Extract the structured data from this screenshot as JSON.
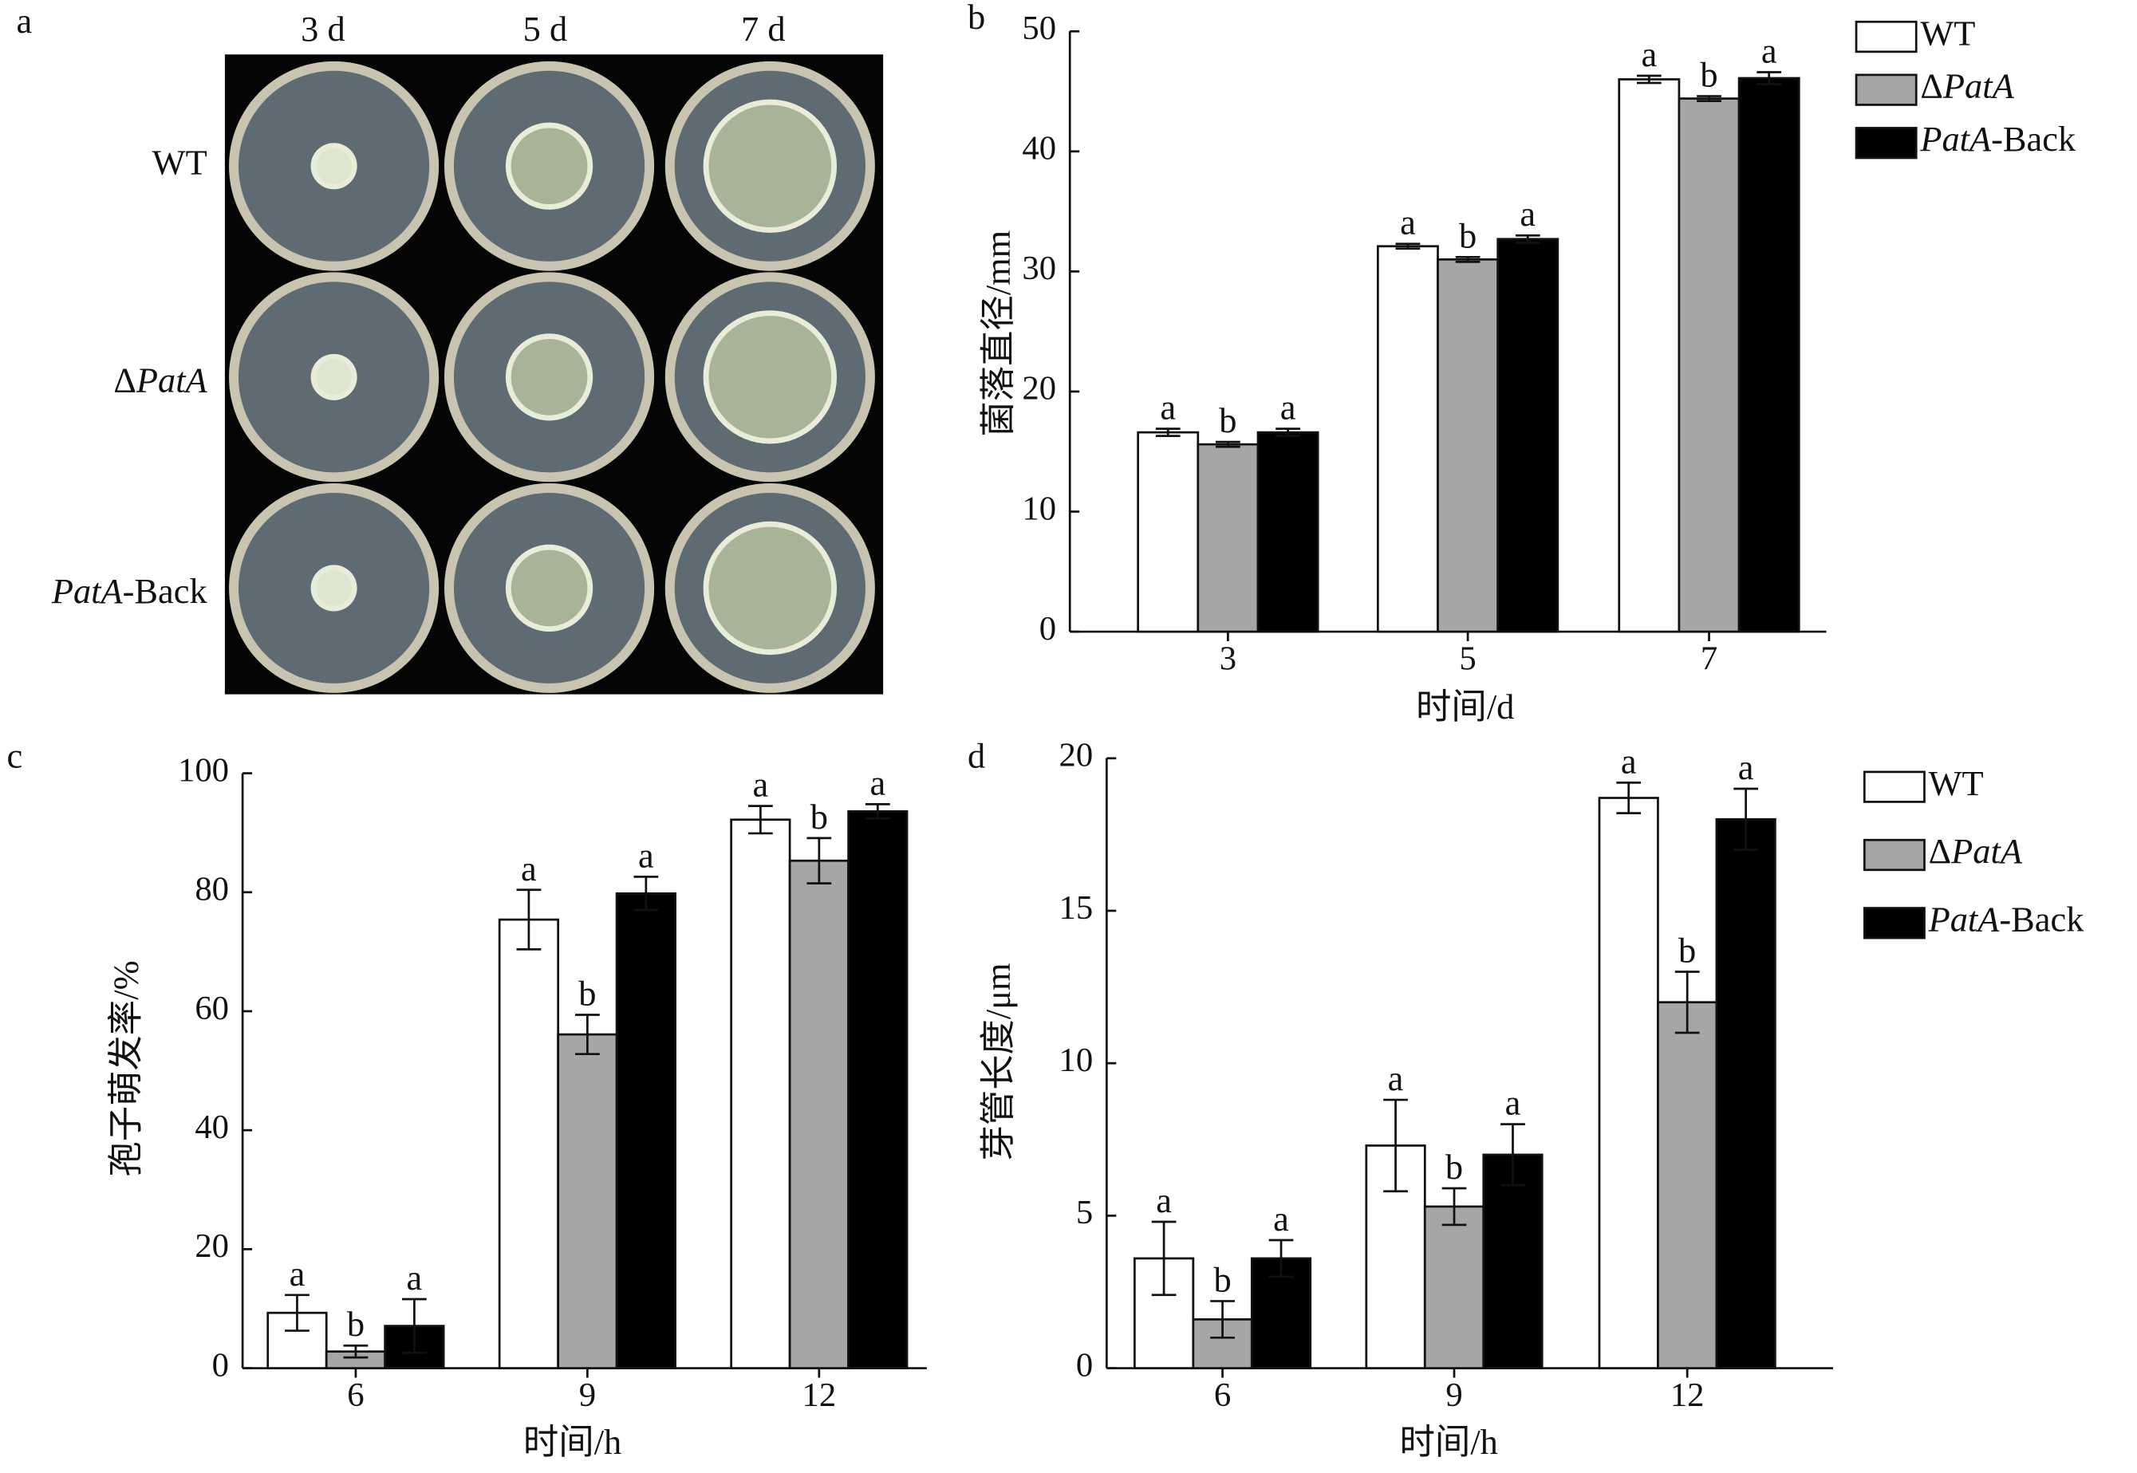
{
  "photo_panel": {
    "label": "a",
    "columns": [
      "3 d",
      "5 d",
      "7 d"
    ],
    "rows": [
      "WT",
      "ΔPatA",
      "PatA-Back"
    ]
  },
  "chart_data": [
    {
      "type": "bar",
      "panel": "b",
      "ylabel": "菌落直径/mm",
      "xlabel": "时间/d",
      "categories": [
        "3",
        "5",
        "7"
      ],
      "ylim": [
        0,
        50
      ],
      "yticks": [
        0,
        10,
        20,
        30,
        40,
        50
      ],
      "legend": "upper right",
      "series": [
        {
          "name": "WT",
          "color": "#ffffff",
          "values": [
            16.6,
            32.1,
            46.0
          ],
          "errors": [
            0.3,
            0.2,
            0.3
          ],
          "letters": [
            "a",
            "a",
            "a"
          ]
        },
        {
          "name": "ΔPatA",
          "color": "#a6a6a6",
          "values": [
            15.6,
            31.0,
            44.4
          ],
          "errors": [
            0.2,
            0.2,
            0.2
          ],
          "letters": [
            "b",
            "b",
            "b"
          ]
        },
        {
          "name": "PatA-Back",
          "color": "#000000",
          "values": [
            16.6,
            32.7,
            46.1
          ],
          "errors": [
            0.3,
            0.3,
            0.5
          ],
          "letters": [
            "a",
            "a",
            "a"
          ]
        }
      ]
    },
    {
      "type": "bar",
      "panel": "c",
      "ylabel": "孢子萌发率/%",
      "xlabel": "时间/h",
      "categories": [
        "6",
        "9",
        "12"
      ],
      "ylim": [
        0,
        100
      ],
      "yticks": [
        0,
        20,
        40,
        60,
        80,
        100
      ],
      "series": [
        {
          "color": "#ffffff",
          "values": [
            9.3,
            75.4,
            92.2
          ],
          "errors": [
            3.0,
            5.0,
            2.3
          ],
          "letters": [
            "a",
            "a",
            "a"
          ]
        },
        {
          "color": "#a6a6a6",
          "values": [
            2.8,
            56.1,
            85.3
          ],
          "errors": [
            1.0,
            3.3,
            3.8
          ],
          "letters": [
            "b",
            "b",
            "b"
          ]
        },
        {
          "color": "#000000",
          "values": [
            7.1,
            79.8,
            93.6
          ],
          "errors": [
            4.5,
            2.8,
            1.2
          ],
          "letters": [
            "a",
            "a",
            "a"
          ]
        }
      ]
    },
    {
      "type": "bar",
      "panel": "d",
      "ylabel": "芽管长度/μm",
      "xlabel": "时间/h",
      "categories": [
        "6",
        "9",
        "12"
      ],
      "ylim": [
        0,
        20
      ],
      "yticks": [
        0,
        5,
        10,
        15,
        20
      ],
      "legend": "upper right",
      "series": [
        {
          "name": "WT",
          "color": "#ffffff",
          "values": [
            3.6,
            7.3,
            18.7
          ],
          "errors": [
            1.2,
            1.5,
            0.5
          ],
          "letters": [
            "a",
            "a",
            "a"
          ]
        },
        {
          "name": "ΔPatA",
          "color": "#a6a6a6",
          "values": [
            1.6,
            5.3,
            12.0
          ],
          "errors": [
            0.6,
            0.6,
            1.0
          ],
          "letters": [
            "b",
            "b",
            "b"
          ]
        },
        {
          "name": "PatA-Back",
          "color": "#000000",
          "values": [
            3.6,
            7.0,
            18.0
          ],
          "errors": [
            0.6,
            1.0,
            1.0
          ],
          "letters": [
            "a",
            "a",
            "a"
          ]
        }
      ]
    }
  ]
}
